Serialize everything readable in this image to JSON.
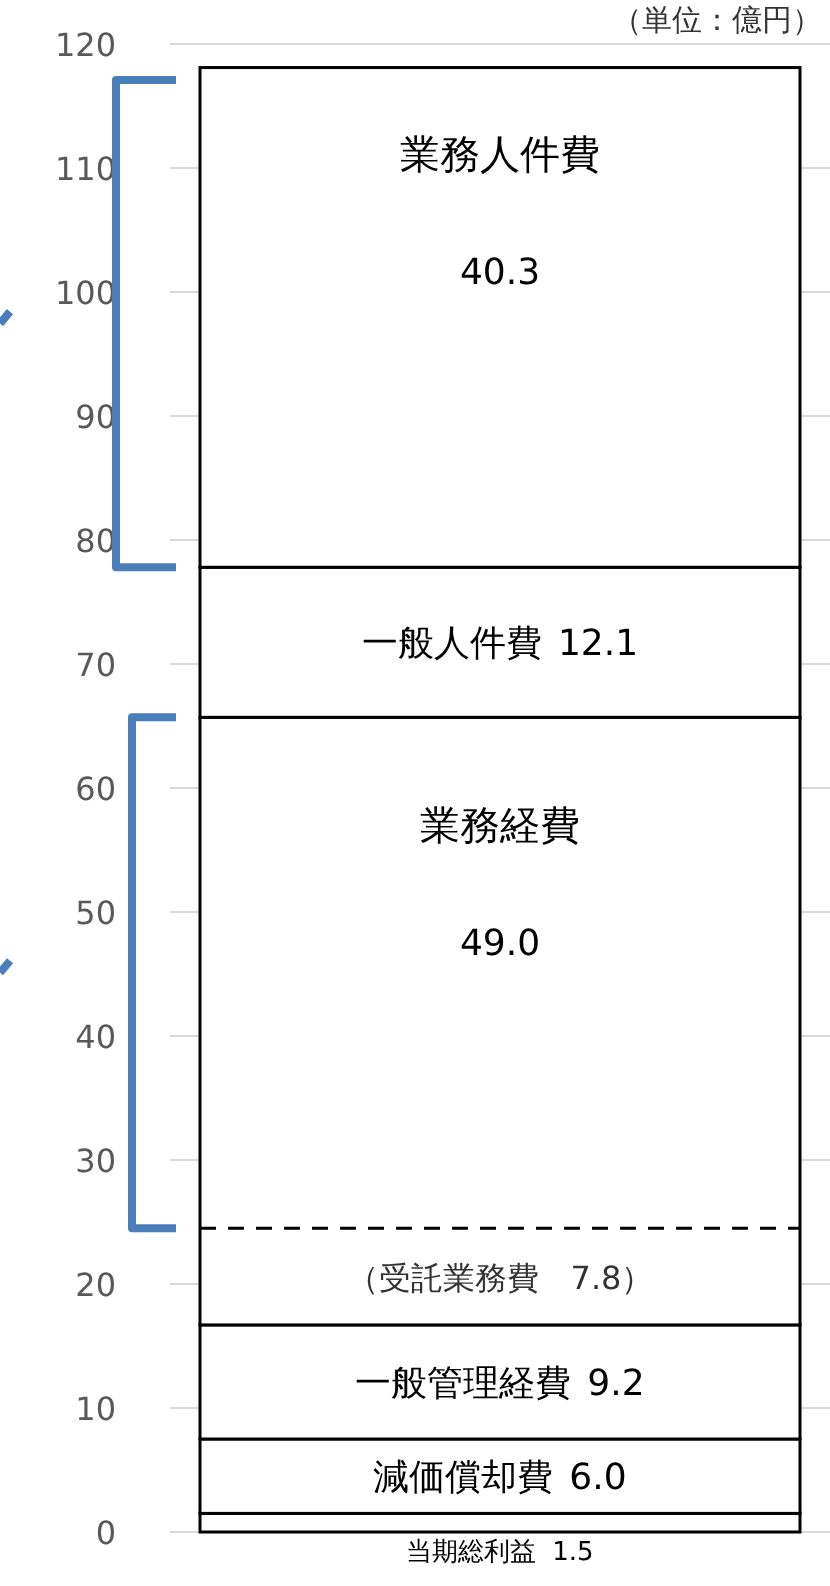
{
  "chart_data": {
    "type": "bar",
    "stacked": true,
    "categories": [
      null
    ],
    "ylim": [
      0,
      120
    ],
    "yticks": [
      0,
      10,
      20,
      30,
      40,
      50,
      60,
      70,
      80,
      90,
      100,
      110,
      120
    ],
    "grid": "y",
    "series": [
      {
        "name": "当期総利益",
        "color": "#ffffff",
        "values": [
          1.5
        ],
        "value_labels": [
          "1.5"
        ]
      },
      {
        "name": "減価償却費",
        "color": "#ffffff",
        "values": [
          6.0
        ],
        "value_labels": [
          "6.0"
        ]
      },
      {
        "name": "一般管理経費",
        "color": "#ffffff",
        "values": [
          9.2
        ],
        "value_labels": [
          "9.2"
        ]
      },
      {
        "name": "業務経費",
        "color": "#ffffff",
        "values": [
          49.0
        ],
        "value_labels": [
          "49.0"
        ]
      },
      {
        "name": "一般人件費",
        "color": "#ffffff",
        "values": [
          12.1
        ],
        "value_labels": [
          "12.1"
        ]
      },
      {
        "name": "業務人件費",
        "color": "#ffffff",
        "values": [
          40.3
        ],
        "value_labels": [
          "40.3"
        ]
      }
    ],
    "ref_lines": [
      {
        "axis": "y",
        "value": 24.5,
        "line_style": "dashed",
        "color": "#000000"
      }
    ],
    "annotations": [
      "（単位：億円）",
      "（受託業務費　7.8）"
    ]
  }
}
